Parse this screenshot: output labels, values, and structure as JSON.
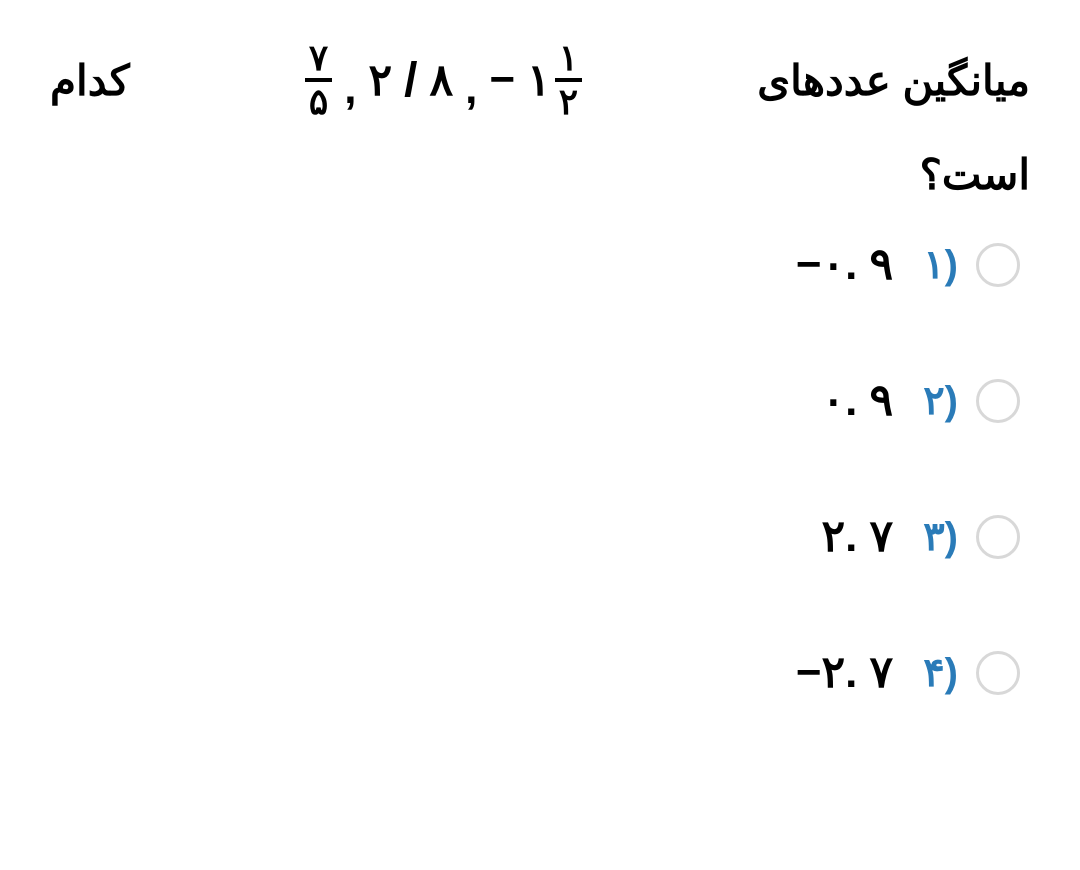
{
  "question": {
    "word_right": "میانگین عددهای",
    "word_left": "کدام",
    "line2": "است؟",
    "math": {
      "minus1": "−",
      "mixed_whole": "۱",
      "mixed_num": "۱",
      "mixed_den": "۲",
      "comma1": ",",
      "two": "۲",
      "slash": "/",
      "eight": "۸",
      "comma2": ",",
      "frac2_num": "۷",
      "frac2_den": "۵"
    }
  },
  "options": [
    {
      "num": "۱)",
      "val": "−٠. ۹"
    },
    {
      "num": "۲)",
      "val": "٠. ۹"
    },
    {
      "num": "۳)",
      "val": "۲. ۷"
    },
    {
      "num": "۴)",
      "val": "−۲. ۷"
    }
  ],
  "colors": {
    "option_num": "#2a7bb8",
    "text": "#000000",
    "radio_border": "#d8d8d8",
    "background": "#ffffff"
  }
}
